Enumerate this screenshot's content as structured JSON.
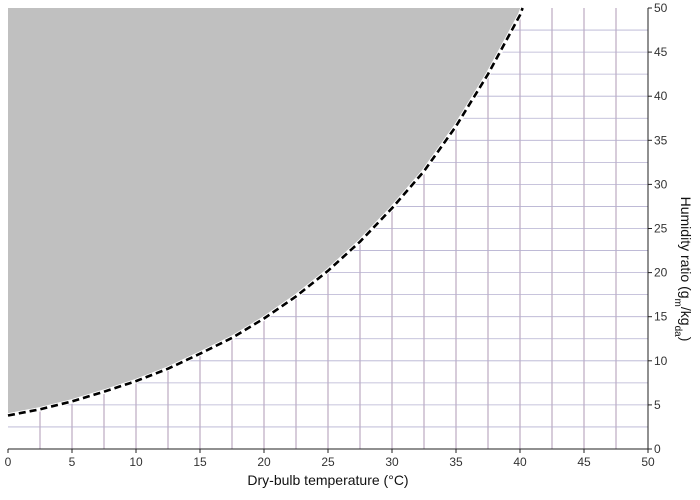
{
  "chart_data": {
    "type": "area",
    "title": "",
    "xlabel": "Dry-bulb temperature (°C)",
    "ylabel_parts": {
      "prefix": "Humidity ratio (g",
      "sub1": "m",
      "mid": "/kg",
      "sub2": "da",
      "suffix": ")"
    },
    "xlim": [
      0,
      50
    ],
    "ylim": [
      0,
      50
    ],
    "x_ticks": [
      0,
      5,
      10,
      15,
      20,
      25,
      30,
      35,
      40,
      45,
      50
    ],
    "y_ticks": [
      0,
      5,
      10,
      15,
      20,
      25,
      30,
      35,
      40,
      45,
      50
    ],
    "y_axis_side": "right",
    "grid": true,
    "grid_minor_x_step": 2.5,
    "grid_minor_y_step": 2.5,
    "series": [
      {
        "style": "dashed",
        "x": [
          0,
          2.5,
          5,
          7.5,
          10,
          12.5,
          15,
          17.5,
          20,
          22.5,
          25,
          27.5,
          30,
          32.5,
          35,
          37.5,
          40,
          40.2
        ],
        "y": [
          3.8,
          4.5,
          5.4,
          6.5,
          7.7,
          9.1,
          10.8,
          12.6,
          14.8,
          17.3,
          20.2,
          23.5,
          27.3,
          31.5,
          36.6,
          42.5,
          49.2,
          50
        ]
      }
    ],
    "shaded_region": "above-curve",
    "colors": {
      "fill": "#c0c0c0",
      "curve": "#000000",
      "grid_vertical": "#9b7fa3",
      "grid_horizontal": "#b5b0d0",
      "axis": "#222222"
    }
  }
}
